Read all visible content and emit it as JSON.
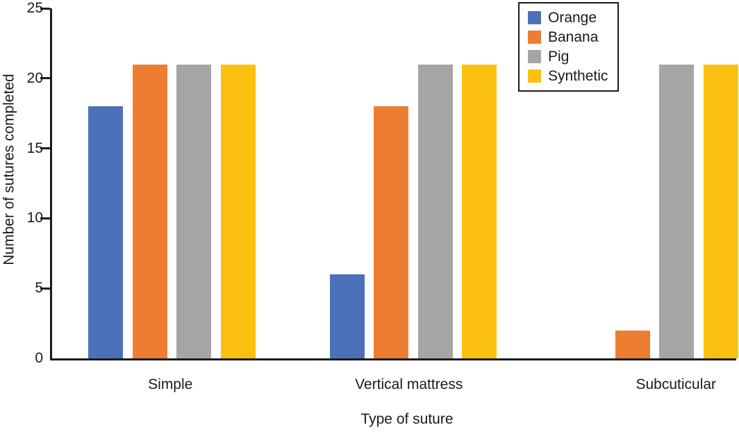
{
  "chart_data": {
    "type": "bar",
    "title": "",
    "xlabel": "Type of suture",
    "ylabel": "Number of sutures completed",
    "categories": [
      "Simple",
      "Vertical mattress",
      "Subcuticular"
    ],
    "series": [
      {
        "name": "Orange",
        "color": "#4B72B8",
        "values": [
          18,
          6,
          0
        ]
      },
      {
        "name": "Banana",
        "color": "#ED7D31",
        "values": [
          21,
          18,
          2
        ]
      },
      {
        "name": "Pig",
        "color": "#A5A5A5",
        "values": [
          21,
          21,
          21
        ]
      },
      {
        "name": "Synthetic",
        "color": "#FCC011",
        "values": [
          21,
          21,
          21
        ]
      }
    ],
    "ylim": [
      0,
      25
    ],
    "yticks": [
      0,
      5,
      10,
      15,
      20,
      25
    ],
    "grid": false,
    "legend_position": "top-right",
    "axis_color": "#1a1a1a",
    "text_color": "#1a1a1a"
  }
}
